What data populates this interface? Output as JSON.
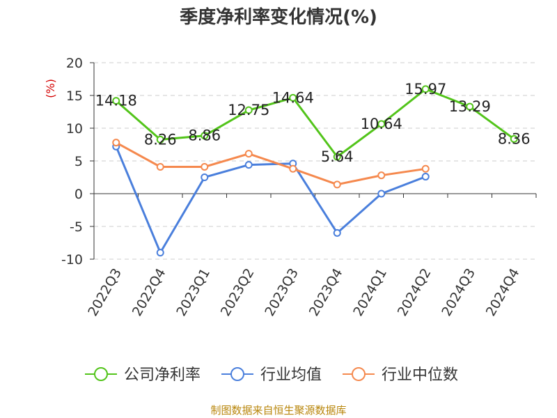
{
  "chart_data": {
    "type": "line",
    "title": "季度净利率变化情况(%)",
    "ylabel": "(%)",
    "ylim": [
      -10,
      20
    ],
    "yticks": [
      20,
      15,
      10,
      5,
      0,
      -5,
      -10
    ],
    "grid": true,
    "legend_position": "bottom",
    "categories": [
      "2022Q3",
      "2022Q4",
      "2023Q1",
      "2023Q2",
      "2023Q3",
      "2023Q4",
      "2024Q1",
      "2024Q2",
      "2024Q3",
      "2024Q4"
    ],
    "series": [
      {
        "name": "公司净利率",
        "color": "#52c41a",
        "labels": true,
        "values": [
          14.18,
          8.26,
          8.86,
          12.75,
          14.64,
          5.64,
          10.64,
          15.97,
          13.29,
          8.36
        ]
      },
      {
        "name": "行业均值",
        "color": "#4a7fdc",
        "labels": false,
        "values": [
          7.2,
          -9.0,
          2.5,
          4.4,
          4.6,
          -6.0,
          0.0,
          2.6,
          null,
          null
        ]
      },
      {
        "name": "行业中位数",
        "color": "#f5894e",
        "labels": false,
        "values": [
          7.8,
          4.1,
          4.1,
          6.1,
          3.8,
          1.4,
          2.8,
          3.8,
          null,
          null
        ]
      }
    ]
  },
  "source": "制图数据来自恒生聚源数据库",
  "colors": {
    "ylabel": "#d40000",
    "source": "#b8860b",
    "grid": "#cccccc",
    "axis": "#333333"
  }
}
